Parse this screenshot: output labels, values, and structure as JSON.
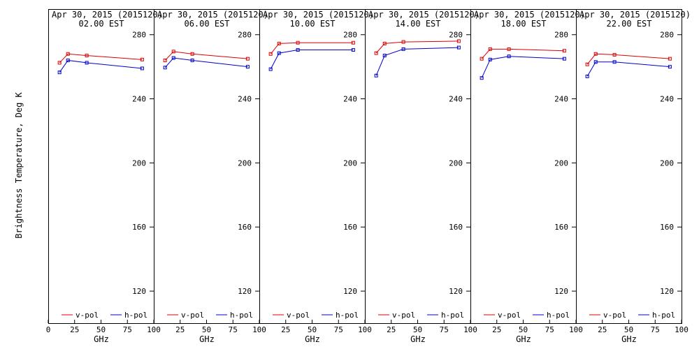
{
  "chart_data": {
    "type": "line",
    "ylabel": "Brightness Temperature, Deg K",
    "xlabel": "GHz",
    "xlim": [
      0,
      100
    ],
    "ylim": [
      100,
      296
    ],
    "xticks": [
      0,
      25,
      50,
      75,
      100
    ],
    "yticks": [
      120,
      160,
      200,
      240,
      280
    ],
    "legend_position": "bottom",
    "series_colors": {
      "v-pol": "#dd0000",
      "h-pol": "#0000cc"
    },
    "panels": [
      {
        "title": "Apr 30, 2015 (2015120)",
        "subtitle": "02.00 EST",
        "series": [
          {
            "name": "v-pol",
            "x": [
              10.7,
              18.7,
              36.5,
              89.0
            ],
            "y": [
              262.5,
              268,
              267,
              264.5
            ]
          },
          {
            "name": "h-pol",
            "x": [
              10.7,
              18.7,
              36.5,
              89.0
            ],
            "y": [
              256.5,
              264,
              262.5,
              259
            ]
          }
        ]
      },
      {
        "title": "Apr 30, 2015 (2015120)",
        "subtitle": "06.00 EST",
        "series": [
          {
            "name": "v-pol",
            "x": [
              10.7,
              18.7,
              36.5,
              89.0
            ],
            "y": [
              264,
              269.5,
              268,
              265
            ]
          },
          {
            "name": "h-pol",
            "x": [
              10.7,
              18.7,
              36.5,
              89.0
            ],
            "y": [
              259.5,
              265.5,
              264,
              260
            ]
          }
        ]
      },
      {
        "title": "Apr 30, 2015 (2015120)",
        "subtitle": "10.00 EST",
        "series": [
          {
            "name": "v-pol",
            "x": [
              10.7,
              18.7,
              36.5,
              89.0
            ],
            "y": [
              268,
              274.5,
              275,
              275
            ]
          },
          {
            "name": "h-pol",
            "x": [
              10.7,
              18.7,
              36.5,
              89.0
            ],
            "y": [
              258.5,
              268.5,
              270.5,
              270.5
            ]
          }
        ]
      },
      {
        "title": "Apr 30, 2015 (2015120)",
        "subtitle": "14.00 EST",
        "series": [
          {
            "name": "v-pol",
            "x": [
              10.7,
              18.7,
              36.5,
              89.0
            ],
            "y": [
              268.5,
              274.5,
              275.5,
              276
            ]
          },
          {
            "name": "h-pol",
            "x": [
              10.7,
              18.7,
              36.5,
              89.0
            ],
            "y": [
              254.5,
              267,
              271,
              272
            ]
          }
        ]
      },
      {
        "title": "Apr 30, 2015 (2015120)",
        "subtitle": "18.00 EST",
        "series": [
          {
            "name": "v-pol",
            "x": [
              10.7,
              18.7,
              36.5,
              89.0
            ],
            "y": [
              265,
              271,
              271,
              270
            ]
          },
          {
            "name": "h-pol",
            "x": [
              10.7,
              18.7,
              36.5,
              89.0
            ],
            "y": [
              253,
              264.5,
              266.5,
              265
            ]
          }
        ]
      },
      {
        "title": "Apr 30, 2015 (2015120)",
        "subtitle": "22.00 EST",
        "series": [
          {
            "name": "v-pol",
            "x": [
              10.7,
              18.7,
              36.5,
              89.0
            ],
            "y": [
              261.5,
              268,
              267.5,
              265
            ]
          },
          {
            "name": "h-pol",
            "x": [
              10.7,
              18.7,
              36.5,
              89.0
            ],
            "y": [
              254,
              263,
              263,
              260
            ]
          }
        ]
      }
    ]
  }
}
